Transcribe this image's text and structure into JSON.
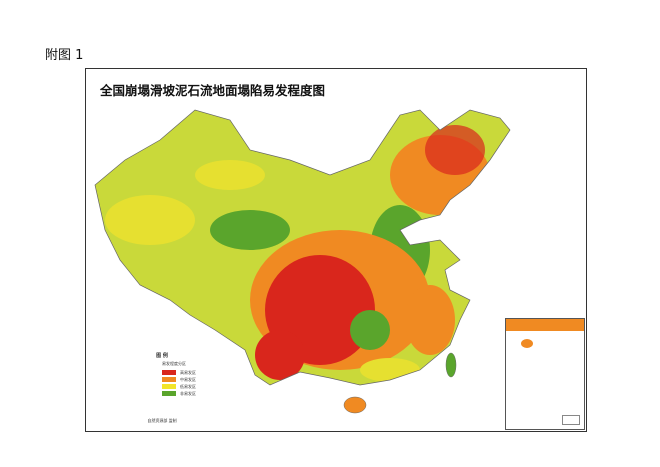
{
  "figure_label": "附图 1",
  "title": "全国崩塌滑坡泥石流地面塌陷易发程度图",
  "legend": {
    "heading": "图 例",
    "zones_heading": "易发程度分区",
    "zones": [
      {
        "label": "高易发区",
        "color": "#d9261c"
      },
      {
        "label": "中易发区",
        "color": "#f08a22"
      },
      {
        "label": "低易发区",
        "color": "#f2e52a"
      },
      {
        "label": "非易发区",
        "color": "#5aa52c"
      }
    ]
  },
  "approval": "自然资源部 监制",
  "colors": {
    "high": "#d9261c",
    "medium": "#f08a22",
    "low": "#e6e030",
    "non": "#5aa52c",
    "sea": "#ffffff"
  }
}
